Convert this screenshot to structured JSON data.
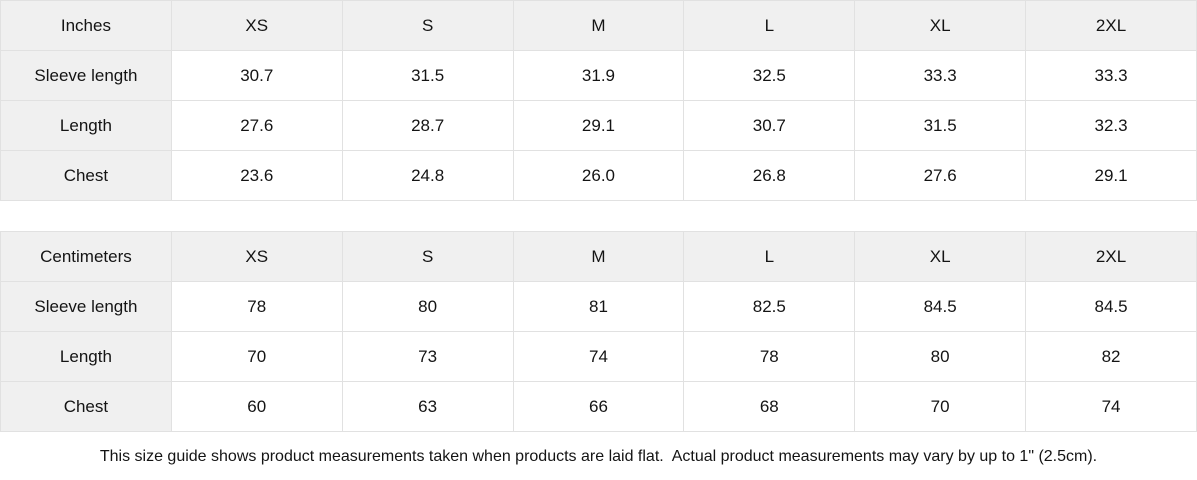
{
  "colors": {
    "header_bg": "#f0f0f0",
    "border": "#e1e1e1",
    "text": "#141414",
    "background": "#ffffff"
  },
  "tables": [
    {
      "unit_label": "Inches",
      "columns": [
        "XS",
        "S",
        "M",
        "L",
        "XL",
        "2XL"
      ],
      "rows": [
        {
          "label": "Sleeve length",
          "values": [
            "30.7",
            "31.5",
            "31.9",
            "32.5",
            "33.3",
            "33.3"
          ]
        },
        {
          "label": "Length",
          "values": [
            "27.6",
            "28.7",
            "29.1",
            "30.7",
            "31.5",
            "32.3"
          ]
        },
        {
          "label": "Chest",
          "values": [
            "23.6",
            "24.8",
            "26.0",
            "26.8",
            "27.6",
            "29.1"
          ]
        }
      ]
    },
    {
      "unit_label": "Centimeters",
      "columns": [
        "XS",
        "S",
        "M",
        "L",
        "XL",
        "2XL"
      ],
      "rows": [
        {
          "label": "Sleeve length",
          "values": [
            "78",
            "80",
            "81",
            "82.5",
            "84.5",
            "84.5"
          ]
        },
        {
          "label": "Length",
          "values": [
            "70",
            "73",
            "74",
            "78",
            "80",
            "82"
          ]
        },
        {
          "label": "Chest",
          "values": [
            "60",
            "63",
            "66",
            "68",
            "70",
            "74"
          ]
        }
      ]
    }
  ],
  "footer": {
    "note": "This size guide shows product measurements taken when products are laid flat.  Actual product measurements may vary by up to 1\" (2.5cm)."
  }
}
